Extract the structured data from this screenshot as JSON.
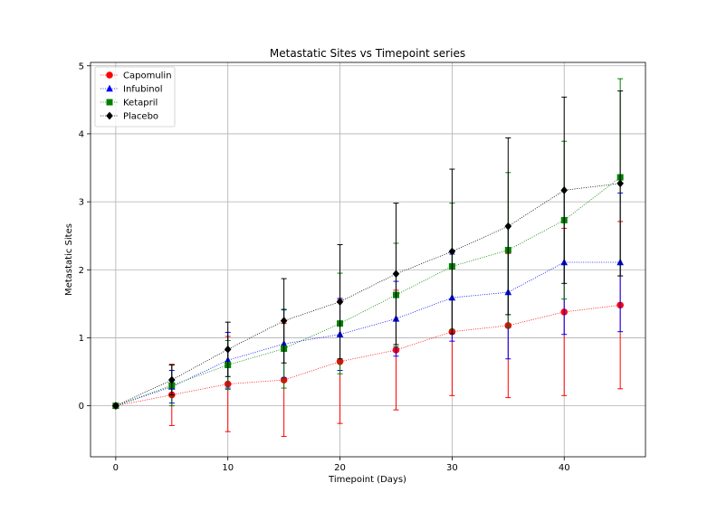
{
  "chart_data": {
    "type": "line",
    "title": "Metastatic Sites vs Timepoint series",
    "xlabel": "Timepoint (Days)",
    "ylabel": "Metastatic Sites",
    "xlim": [
      -2.25,
      47.25
    ],
    "ylim": [
      -0.75,
      5.05
    ],
    "xticks": [
      0,
      10,
      20,
      30,
      40
    ],
    "yticks": [
      0,
      1,
      2,
      3,
      4,
      5
    ],
    "grid": true,
    "legend_position": "top-left",
    "x": [
      0,
      5,
      10,
      15,
      20,
      25,
      30,
      35,
      40,
      45
    ],
    "series": [
      {
        "name": "Capomulin",
        "color": "#ff0000",
        "marker": "circle",
        "values": [
          0.0,
          0.16,
          0.32,
          0.38,
          0.65,
          0.82,
          1.09,
          1.18,
          1.38,
          1.48
        ],
        "errors": [
          0.0,
          0.45,
          0.7,
          0.83,
          0.91,
          0.88,
          0.94,
          1.06,
          1.23,
          1.23
        ]
      },
      {
        "name": "Infubinol",
        "color": "#0000ff",
        "marker": "triangle",
        "values": [
          0.0,
          0.28,
          0.67,
          0.91,
          1.05,
          1.28,
          1.59,
          1.67,
          2.11,
          2.11
        ],
        "errors": [
          0.0,
          0.24,
          0.41,
          0.5,
          0.53,
          0.55,
          0.64,
          0.98,
          1.06,
          1.02
        ]
      },
      {
        "name": "Ketapril",
        "color": "#008000",
        "marker": "square",
        "values": [
          0.0,
          0.3,
          0.6,
          0.84,
          1.21,
          1.63,
          2.05,
          2.29,
          2.73,
          3.36
        ],
        "errors": [
          0.0,
          0.3,
          0.36,
          0.58,
          0.74,
          0.76,
          0.93,
          1.14,
          1.16,
          1.45
        ]
      },
      {
        "name": "Placebo",
        "color": "#000000",
        "marker": "diamond",
        "values": [
          0.0,
          0.38,
          0.83,
          1.25,
          1.53,
          1.94,
          2.27,
          2.64,
          3.17,
          3.27
        ],
        "errors": [
          0.0,
          0.22,
          0.4,
          0.62,
          0.84,
          1.04,
          1.21,
          1.3,
          1.37,
          1.36
        ]
      }
    ]
  }
}
